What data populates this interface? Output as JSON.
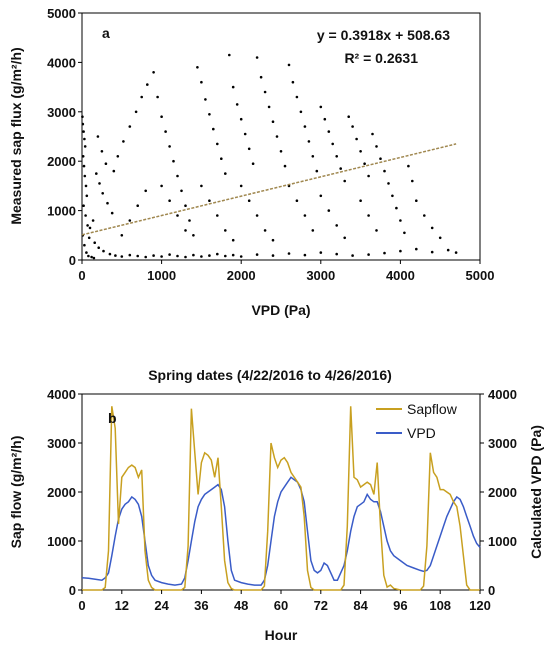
{
  "chart_data": [
    {
      "type": "scatter",
      "panel_label": "a",
      "title": "",
      "xlabel": "VPD (Pa)",
      "ylabel": "Measured sap flux (g/m²/h)",
      "xlim": [
        0,
        5000
      ],
      "ylim": [
        0,
        5000
      ],
      "xticks": [
        "0",
        "1000",
        "2000",
        "3000",
        "4000",
        "5000"
      ],
      "yticks": [
        "0",
        "1000",
        "2000",
        "3000",
        "4000",
        "5000"
      ],
      "grid": false,
      "equation": "y = 0.3918x + 508.63",
      "r_squared": "R² = 0.2631",
      "trendline": {
        "slope": 0.3918,
        "intercept": 508.63,
        "x_range": [
          0,
          4700
        ],
        "color": "#a08850"
      },
      "point_color": "#000000",
      "points": [
        [
          5,
          2900
        ],
        [
          10,
          2750
        ],
        [
          20,
          2600
        ],
        [
          30,
          2450
        ],
        [
          40,
          2300
        ],
        [
          15,
          2100
        ],
        [
          25,
          1900
        ],
        [
          35,
          1700
        ],
        [
          50,
          1500
        ],
        [
          60,
          1300
        ],
        [
          20,
          1100
        ],
        [
          45,
          900
        ],
        [
          70,
          700
        ],
        [
          10,
          500
        ],
        [
          30,
          300
        ],
        [
          55,
          150
        ],
        [
          80,
          80
        ],
        [
          120,
          60
        ],
        [
          150,
          40
        ],
        [
          200,
          2500
        ],
        [
          250,
          2200
        ],
        [
          300,
          1950
        ],
        [
          180,
          1750
        ],
        [
          220,
          1550
        ],
        [
          260,
          1350
        ],
        [
          320,
          1150
        ],
        [
          380,
          950
        ],
        [
          140,
          800
        ],
        [
          100,
          650
        ],
        [
          90,
          450
        ],
        [
          160,
          350
        ],
        [
          210,
          250
        ],
        [
          270,
          180
        ],
        [
          350,
          120
        ],
        [
          420,
          90
        ],
        [
          500,
          70
        ],
        [
          600,
          100
        ],
        [
          700,
          80
        ],
        [
          800,
          60
        ],
        [
          900,
          90
        ],
        [
          1000,
          70
        ],
        [
          1100,
          110
        ],
        [
          1200,
          80
        ],
        [
          1300,
          60
        ],
        [
          1400,
          100
        ],
        [
          1500,
          70
        ],
        [
          1600,
          90
        ],
        [
          1700,
          120
        ],
        [
          1800,
          80
        ],
        [
          1900,
          100
        ],
        [
          2000,
          70
        ],
        [
          2200,
          110
        ],
        [
          2400,
          90
        ],
        [
          2600,
          130
        ],
        [
          2800,
          100
        ],
        [
          3000,
          150
        ],
        [
          3200,
          120
        ],
        [
          3400,
          90
        ],
        [
          3600,
          110
        ],
        [
          3800,
          140
        ],
        [
          4000,
          180
        ],
        [
          4200,
          220
        ],
        [
          4400,
          160
        ],
        [
          4600,
          200
        ],
        [
          4700,
          150
        ],
        [
          400,
          1800
        ],
        [
          450,
          2100
        ],
        [
          520,
          2400
        ],
        [
          600,
          2700
        ],
        [
          680,
          3000
        ],
        [
          750,
          3300
        ],
        [
          820,
          3550
        ],
        [
          900,
          3800
        ],
        [
          950,
          3300
        ],
        [
          1000,
          2900
        ],
        [
          1050,
          2600
        ],
        [
          1100,
          2300
        ],
        [
          1150,
          2000
        ],
        [
          1200,
          1700
        ],
        [
          1250,
          1400
        ],
        [
          1300,
          1100
        ],
        [
          1350,
          800
        ],
        [
          1400,
          500
        ],
        [
          1450,
          3900
        ],
        [
          1500,
          3600
        ],
        [
          1550,
          3250
        ],
        [
          1600,
          2950
        ],
        [
          1650,
          2650
        ],
        [
          1700,
          2350
        ],
        [
          1750,
          2050
        ],
        [
          1800,
          1750
        ],
        [
          1850,
          4150
        ],
        [
          1900,
          3500
        ],
        [
          1950,
          3150
        ],
        [
          2000,
          2850
        ],
        [
          2050,
          2550
        ],
        [
          2100,
          2250
        ],
        [
          2150,
          1950
        ],
        [
          2200,
          4100
        ],
        [
          2250,
          3700
        ],
        [
          2300,
          3400
        ],
        [
          2350,
          3100
        ],
        [
          2400,
          2800
        ],
        [
          2450,
          2500
        ],
        [
          2500,
          2200
        ],
        [
          2550,
          1900
        ],
        [
          2600,
          3950
        ],
        [
          2650,
          3600
        ],
        [
          2700,
          3300
        ],
        [
          2750,
          3000
        ],
        [
          2800,
          2700
        ],
        [
          2850,
          2400
        ],
        [
          2900,
          2100
        ],
        [
          2950,
          1800
        ],
        [
          3000,
          3100
        ],
        [
          3050,
          2850
        ],
        [
          3100,
          2600
        ],
        [
          3150,
          2350
        ],
        [
          3200,
          2100
        ],
        [
          3250,
          1850
        ],
        [
          3300,
          1600
        ],
        [
          3350,
          2900
        ],
        [
          3400,
          2700
        ],
        [
          3450,
          2450
        ],
        [
          3500,
          2200
        ],
        [
          3550,
          1950
        ],
        [
          3600,
          1700
        ],
        [
          3650,
          2550
        ],
        [
          3700,
          2300
        ],
        [
          3750,
          2050
        ],
        [
          3800,
          1800
        ],
        [
          3850,
          1550
        ],
        [
          3900,
          1300
        ],
        [
          3950,
          1050
        ],
        [
          4000,
          800
        ],
        [
          4050,
          550
        ],
        [
          4100,
          1900
        ],
        [
          4150,
          1600
        ],
        [
          4200,
          1200
        ],
        [
          4300,
          900
        ],
        [
          4400,
          650
        ],
        [
          4500,
          450
        ],
        [
          2000,
          1500
        ],
        [
          2100,
          1200
        ],
        [
          2200,
          900
        ],
        [
          2300,
          600
        ],
        [
          2400,
          400
        ],
        [
          1500,
          1500
        ],
        [
          1600,
          1200
        ],
        [
          1700,
          900
        ],
        [
          1800,
          600
        ],
        [
          1900,
          400
        ],
        [
          1000,
          1500
        ],
        [
          1100,
          1200
        ],
        [
          1200,
          900
        ],
        [
          1300,
          600
        ],
        [
          800,
          1400
        ],
        [
          700,
          1100
        ],
        [
          600,
          800
        ],
        [
          500,
          500
        ],
        [
          3000,
          1300
        ],
        [
          3100,
          1000
        ],
        [
          3200,
          700
        ],
        [
          3300,
          450
        ],
        [
          3500,
          1200
        ],
        [
          3600,
          900
        ],
        [
          3700,
          600
        ],
        [
          2600,
          1500
        ],
        [
          2700,
          1200
        ],
        [
          2800,
          900
        ],
        [
          2900,
          600
        ]
      ]
    },
    {
      "type": "line",
      "panel_label": "b",
      "title": "Spring dates (4/22/2016 to 4/26/2016)",
      "xlabel": "Hour",
      "ylabel": "Sap flow (g/m²/h)",
      "y2label": "Calculated VPD (Pa)",
      "xlim": [
        0,
        120
      ],
      "ylim": [
        0,
        4000
      ],
      "y2lim": [
        0,
        4000
      ],
      "xticks": [
        "0",
        "12",
        "24",
        "36",
        "48",
        "60",
        "72",
        "84",
        "96",
        "108",
        "120"
      ],
      "yticks": [
        "0",
        "1000",
        "2000",
        "3000",
        "4000"
      ],
      "y2ticks": [
        "0",
        "1000",
        "2000",
        "3000",
        "4000"
      ],
      "legend_position": "top-right",
      "series": [
        {
          "name": "Sapflow",
          "color": "#c8a020",
          "axis": "left",
          "x": [
            0,
            2,
            4,
            6,
            7,
            8,
            9,
            10,
            11,
            12,
            13,
            14,
            15,
            16,
            17,
            18,
            19,
            20,
            21,
            22,
            24,
            26,
            28,
            30,
            31,
            32,
            33,
            34,
            35,
            36,
            37,
            38,
            39,
            40,
            41,
            42,
            43,
            44,
            45,
            46,
            48,
            50,
            52,
            54,
            55,
            56,
            57,
            58,
            59,
            60,
            61,
            62,
            63,
            64,
            65,
            66,
            67,
            68,
            69,
            70,
            72,
            74,
            76,
            78,
            79,
            80,
            81,
            82,
            83,
            84,
            85,
            86,
            87,
            88,
            89,
            90,
            91,
            92,
            93,
            94,
            96,
            98,
            100,
            102,
            103,
            104,
            105,
            106,
            107,
            108,
            109,
            110,
            111,
            112,
            113,
            114,
            115,
            116,
            117,
            118,
            120
          ],
          "values": [
            0,
            0,
            0,
            0,
            50,
            800,
            3750,
            3300,
            1350,
            2300,
            2400,
            2500,
            2550,
            2500,
            2300,
            2450,
            800,
            200,
            50,
            0,
            0,
            0,
            0,
            0,
            50,
            900,
            3700,
            2800,
            1950,
            2600,
            2800,
            2750,
            2650,
            2300,
            2700,
            1700,
            600,
            150,
            30,
            0,
            0,
            0,
            0,
            0,
            80,
            1200,
            3000,
            2700,
            2500,
            2650,
            2700,
            2600,
            2400,
            2300,
            2200,
            2100,
            1500,
            400,
            50,
            0,
            0,
            0,
            0,
            0,
            100,
            1300,
            3750,
            2300,
            2250,
            2100,
            2150,
            2200,
            2150,
            1950,
            2600,
            1300,
            300,
            60,
            100,
            30,
            0,
            0,
            0,
            0,
            80,
            900,
            2800,
            2400,
            2300,
            2050,
            2050,
            2000,
            1950,
            1800,
            1700,
            1300,
            700,
            100,
            0,
            0,
            0
          ]
        },
        {
          "name": "VPD",
          "color": "#3a5cc8",
          "axis": "right",
          "x": [
            0,
            2,
            4,
            6,
            7,
            8,
            9,
            10,
            11,
            12,
            13,
            14,
            15,
            16,
            17,
            18,
            19,
            20,
            21,
            22,
            24,
            26,
            28,
            30,
            31,
            32,
            33,
            34,
            35,
            36,
            37,
            38,
            39,
            40,
            41,
            42,
            43,
            44,
            45,
            46,
            48,
            50,
            52,
            54,
            55,
            56,
            57,
            58,
            59,
            60,
            61,
            62,
            63,
            64,
            65,
            66,
            67,
            68,
            69,
            70,
            71,
            72,
            73,
            74,
            75,
            76,
            77,
            78,
            79,
            80,
            81,
            82,
            83,
            84,
            85,
            86,
            87,
            88,
            89,
            90,
            91,
            92,
            93,
            94,
            96,
            98,
            100,
            102,
            103,
            104,
            105,
            106,
            107,
            108,
            109,
            110,
            111,
            112,
            113,
            114,
            115,
            116,
            117,
            118,
            119,
            120
          ],
          "values": [
            250,
            240,
            220,
            200,
            250,
            350,
            700,
            1100,
            1450,
            1650,
            1750,
            1800,
            1900,
            1850,
            1750,
            1500,
            1000,
            500,
            300,
            200,
            150,
            120,
            100,
            120,
            250,
            600,
            1000,
            1400,
            1700,
            1850,
            1950,
            2000,
            2050,
            2100,
            2150,
            2050,
            1700,
            1000,
            400,
            200,
            150,
            120,
            100,
            100,
            200,
            500,
            1000,
            1500,
            1800,
            2000,
            2100,
            2200,
            2300,
            2250,
            2200,
            2050,
            1800,
            1200,
            600,
            400,
            350,
            400,
            550,
            500,
            350,
            200,
            200,
            350,
            500,
            800,
            1200,
            1500,
            1700,
            1750,
            1800,
            1950,
            1850,
            1800,
            1800,
            1600,
            1300,
            1000,
            800,
            700,
            600,
            500,
            450,
            400,
            380,
            400,
            500,
            700,
            900,
            1100,
            1300,
            1500,
            1650,
            1800,
            1900,
            1850,
            1700,
            1500,
            1300,
            1100,
            950,
            870
          ]
        }
      ]
    }
  ]
}
